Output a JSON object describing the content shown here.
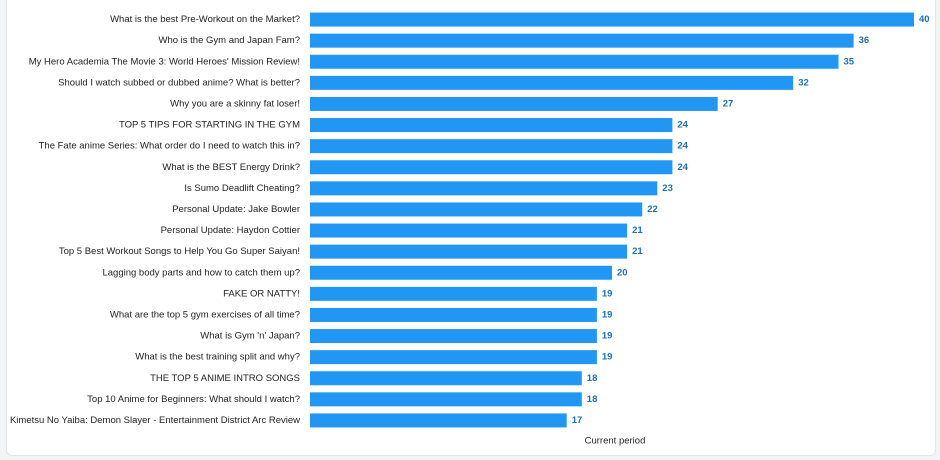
{
  "colors": {
    "bar": "#2196F3",
    "value_label": "#1E6FB8",
    "text": "#222222"
  },
  "chart_data": {
    "type": "bar",
    "orientation": "horizontal",
    "categories": [
      "What is the best Pre-Workout on the Market?",
      "Who is the Gym and Japan Fam?",
      "My Hero Academia The Movie 3: World Heroes' Mission Review!",
      "Should I watch subbed or dubbed anime? What is better?",
      "Why you are a skinny fat loser!",
      "TOP 5 TIPS FOR STARTING IN THE GYM",
      "The Fate anime Series: What order do I need to watch this in?",
      "What is the BEST Energy Drink?",
      "Is Sumo Deadlift Cheating?",
      "Personal Update: Jake Bowler",
      "Personal Update: Haydon Cottier",
      "Top 5 Best Workout Songs to Help You Go Super Saiyan!",
      "Lagging body parts and how to catch them up?",
      "FAKE OR NATTY!",
      "What are the top 5 gym exercises of all time?",
      "What is Gym 'n' Japan?",
      "What is the best training split and why?",
      "THE TOP 5 ANIME INTRO SONGS",
      "Top 10 Anime for Beginners: What should I watch?",
      "Kimetsu No Yaiba: Demon Slayer - Entertainment District Arc Review"
    ],
    "values": [
      40,
      36,
      35,
      32,
      27,
      24,
      24,
      24,
      23,
      22,
      21,
      21,
      20,
      19,
      19,
      19,
      19,
      18,
      18,
      17
    ],
    "xlabel": "Current period",
    "xlim": [
      0,
      40
    ],
    "grid": false,
    "legend": "none"
  }
}
